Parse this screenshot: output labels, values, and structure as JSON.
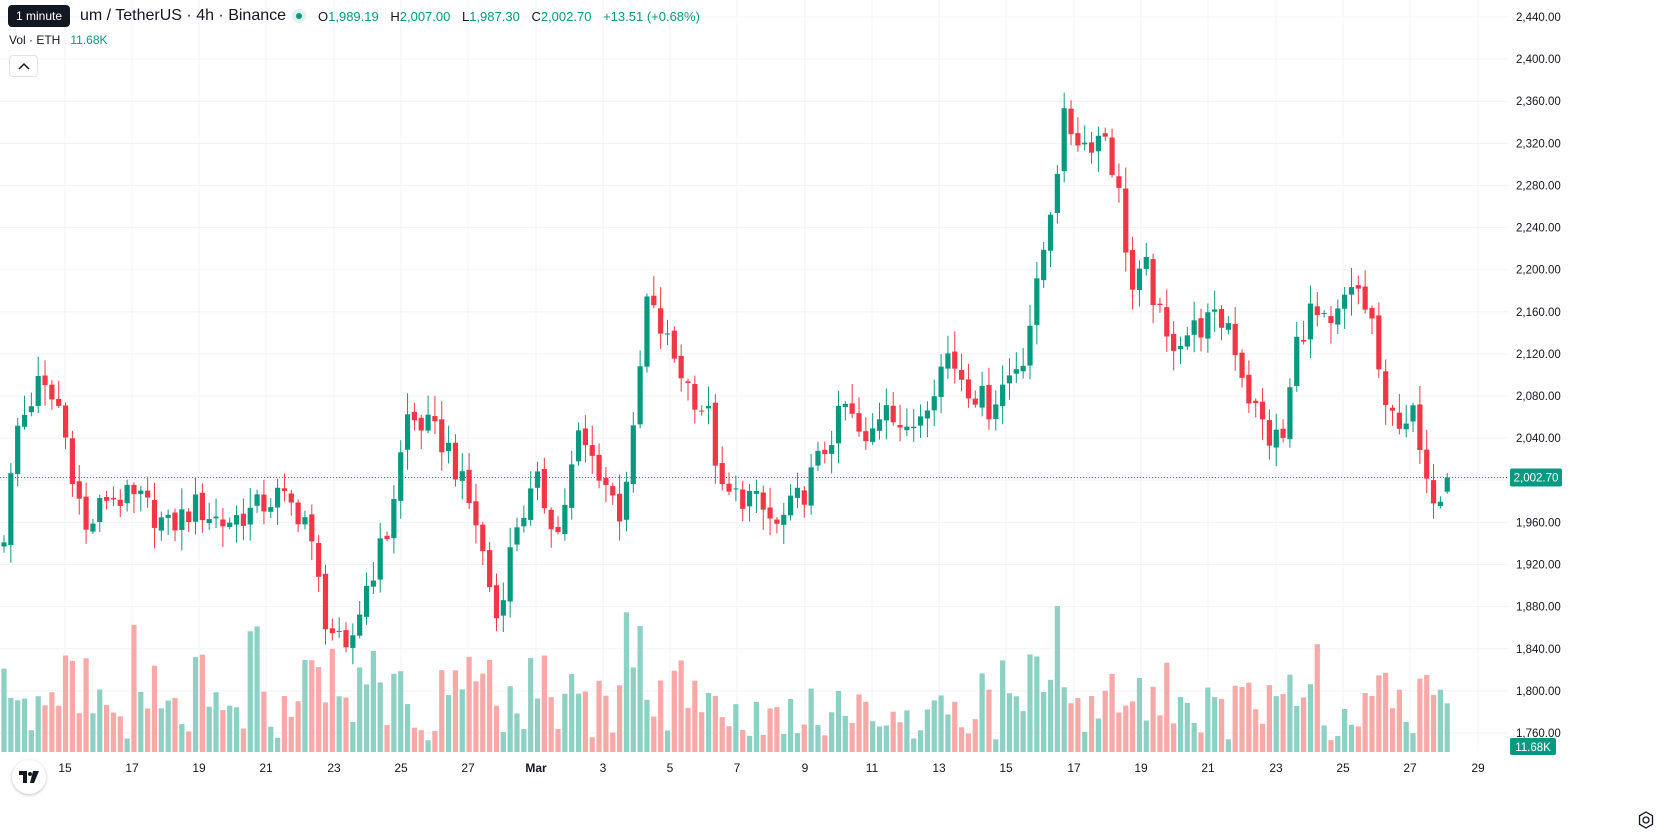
{
  "header": {
    "tooltip": "1 minute",
    "symbol_title": "um / TetherUS · 4h · Binance",
    "ohlc": [
      {
        "key": "O",
        "value": "1,989.19"
      },
      {
        "key": "H",
        "value": "2,007.00"
      },
      {
        "key": "L",
        "value": "1,987.30"
      },
      {
        "key": "C",
        "value": "2,002.70"
      },
      {
        "key": "",
        "value": "+13.51 (+0.68%)"
      }
    ],
    "volume_label": "Vol · ETH",
    "volume_value": "11.68K"
  },
  "colors": {
    "up": "#089981",
    "down": "#f23645",
    "up_volume": "#8dd0c4",
    "down_volume": "#f7a9a7",
    "grid": "#f0f3fa",
    "text": "#131722"
  },
  "icons": [
    "chevron-up-icon",
    "tradingview-logo-icon",
    "settings-icon"
  ],
  "chart_data": {
    "type": "candlestick",
    "timeframe": "4h",
    "exchange": "Binance",
    "pair": "ETH/USDT",
    "ylim": [
      1740,
      2450
    ],
    "y_ticks": [
      "1,760.00",
      "1,800.00",
      "1,840.00",
      "1,880.00",
      "1,920.00",
      "1,960.00",
      "2,000.00",
      "2,040.00",
      "2,080.00",
      "2,120.00",
      "2,160.00",
      "2,200.00",
      "2,240.00",
      "2,280.00",
      "2,320.00",
      "2,360.00",
      "2,400.00",
      "2,440.00"
    ],
    "x_ticks": [
      "15",
      "17",
      "19",
      "21",
      "23",
      "25",
      "27",
      "Mar",
      "3",
      "5",
      "7",
      "9",
      "11",
      "13",
      "15",
      "17",
      "19",
      "21",
      "23",
      "25",
      "27",
      "29"
    ],
    "current_price_label": "2,002.70",
    "current_volume_label": "11.68K",
    "grid": true,
    "close_path": [
      {
        "t": 0,
        "c": 1950
      },
      {
        "t": 2,
        "c": 2050
      },
      {
        "t": 5,
        "c": 2090
      },
      {
        "t": 8,
        "c": 2070
      },
      {
        "t": 12,
        "c": 1950
      },
      {
        "t": 15,
        "c": 1985
      },
      {
        "t": 20,
        "c": 1980
      },
      {
        "t": 24,
        "c": 1955
      },
      {
        "t": 28,
        "c": 1975
      },
      {
        "t": 32,
        "c": 1960
      },
      {
        "t": 36,
        "c": 1970
      },
      {
        "t": 40,
        "c": 1985
      },
      {
        "t": 44,
        "c": 1965
      },
      {
        "t": 47,
        "c": 1870
      },
      {
        "t": 50,
        "c": 1830
      },
      {
        "t": 53,
        "c": 1900
      },
      {
        "t": 56,
        "c": 1950
      },
      {
        "t": 59,
        "c": 2060
      },
      {
        "t": 62,
        "c": 2050
      },
      {
        "t": 65,
        "c": 2030
      },
      {
        "t": 69,
        "c": 1960
      },
      {
        "t": 72,
        "c": 1870
      },
      {
        "t": 75,
        "c": 1960
      },
      {
        "t": 78,
        "c": 1995
      },
      {
        "t": 81,
        "c": 1950
      },
      {
        "t": 84,
        "c": 2040
      },
      {
        "t": 87,
        "c": 2010
      },
      {
        "t": 90,
        "c": 1970
      },
      {
        "t": 92,
        "c": 2040
      },
      {
        "t": 94,
        "c": 2170
      },
      {
        "t": 97,
        "c": 2130
      },
      {
        "t": 100,
        "c": 2090
      },
      {
        "t": 103,
        "c": 2060
      },
      {
        "t": 105,
        "c": 1985
      },
      {
        "t": 109,
        "c": 1985
      },
      {
        "t": 113,
        "c": 1955
      },
      {
        "t": 117,
        "c": 1990
      },
      {
        "t": 120,
        "c": 2030
      },
      {
        "t": 123,
        "c": 2070
      },
      {
        "t": 126,
        "c": 2030
      },
      {
        "t": 129,
        "c": 2080
      },
      {
        "t": 132,
        "c": 2040
      },
      {
        "t": 135,
        "c": 2080
      },
      {
        "t": 138,
        "c": 2120
      },
      {
        "t": 141,
        "c": 2090
      },
      {
        "t": 144,
        "c": 2070
      },
      {
        "t": 147,
        "c": 2100
      },
      {
        "t": 149,
        "c": 2120
      },
      {
        "t": 151,
        "c": 2180
      },
      {
        "t": 153,
        "c": 2260
      },
      {
        "t": 155,
        "c": 2340
      },
      {
        "t": 158,
        "c": 2320
      },
      {
        "t": 161,
        "c": 2330
      },
      {
        "t": 163,
        "c": 2270
      },
      {
        "t": 165,
        "c": 2180
      },
      {
        "t": 167,
        "c": 2200
      },
      {
        "t": 170,
        "c": 2130
      },
      {
        "t": 173,
        "c": 2140
      },
      {
        "t": 176,
        "c": 2150
      },
      {
        "t": 179,
        "c": 2150
      },
      {
        "t": 182,
        "c": 2080
      },
      {
        "t": 185,
        "c": 2040
      },
      {
        "t": 187,
        "c": 2040
      },
      {
        "t": 189,
        "c": 2130
      },
      {
        "t": 191,
        "c": 2160
      },
      {
        "t": 194,
        "c": 2140
      },
      {
        "t": 196,
        "c": 2170
      },
      {
        "t": 198,
        "c": 2180
      },
      {
        "t": 200,
        "c": 2150
      },
      {
        "t": 202,
        "c": 2060
      },
      {
        "t": 204,
        "c": 2060
      },
      {
        "t": 206,
        "c": 2060
      },
      {
        "t": 208,
        "c": 1990
      },
      {
        "t": 210,
        "c": 1990
      },
      {
        "t": 211,
        "c": 2002.7
      }
    ],
    "candle_count": 212
  }
}
